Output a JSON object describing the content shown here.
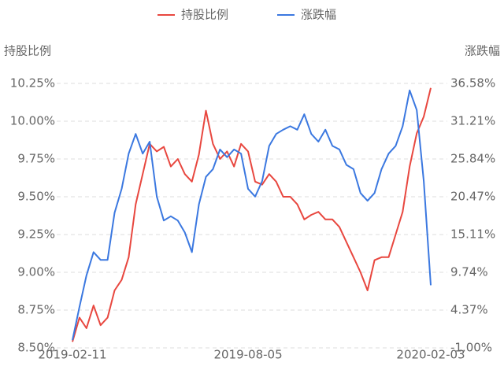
{
  "chart_data": {
    "type": "line",
    "legend_position": "top",
    "y_axis_label": "持股比例",
    "y2_axis_label": "涨跌幅",
    "categories": [
      "2019-02-11",
      null,
      null,
      null,
      null,
      null,
      null,
      null,
      null,
      null,
      null,
      null,
      null,
      null,
      null,
      null,
      null,
      null,
      null,
      null,
      null,
      null,
      null,
      null,
      null,
      "2019-08-05",
      null,
      null,
      null,
      null,
      null,
      null,
      null,
      null,
      null,
      null,
      null,
      null,
      null,
      null,
      null,
      null,
      null,
      null,
      null,
      null,
      null,
      null,
      null,
      null,
      null,
      "2020-02-03"
    ],
    "ylim": [
      8.5,
      10.25
    ],
    "yticks": [
      {
        "value": 8.5,
        "label": "8.50%"
      },
      {
        "value": 8.75,
        "label": "8.75%"
      },
      {
        "value": 9.0,
        "label": "9.00%"
      },
      {
        "value": 9.25,
        "label": "9.25%"
      },
      {
        "value": 9.5,
        "label": "9.50%"
      },
      {
        "value": 9.75,
        "label": "9.75%"
      },
      {
        "value": 10.0,
        "label": "10.00%"
      },
      {
        "value": 10.25,
        "label": "10.25%"
      }
    ],
    "y2lim": [
      -1.0,
      36.58
    ],
    "y2ticks": [
      {
        "value": -1.0,
        "label": "-1.00%"
      },
      {
        "value": 4.37,
        "label": "4.37%"
      },
      {
        "value": 9.74,
        "label": "9.74%"
      },
      {
        "value": 15.11,
        "label": "15.11%"
      },
      {
        "value": 20.47,
        "label": "20.47%"
      },
      {
        "value": 25.84,
        "label": "25.84%"
      },
      {
        "value": 31.21,
        "label": "31.21%"
      },
      {
        "value": 36.58,
        "label": "36.58%"
      }
    ],
    "grid": true,
    "series": [
      {
        "name": "持股比例",
        "color": "#e8473f",
        "values": [
          8.54,
          8.7,
          8.63,
          8.78,
          8.65,
          8.7,
          8.88,
          8.95,
          9.1,
          9.45,
          9.65,
          9.85,
          9.8,
          9.83,
          9.7,
          9.75,
          9.65,
          9.6,
          9.78,
          10.07,
          9.85,
          9.75,
          9.8,
          9.7,
          9.85,
          9.8,
          9.6,
          9.58,
          9.65,
          9.6,
          9.5,
          9.5,
          9.45,
          9.35,
          9.38,
          9.4,
          9.35,
          9.35,
          9.3,
          9.2,
          9.1,
          9.0,
          8.88,
          9.08,
          9.1,
          9.1,
          9.25,
          9.4,
          9.7,
          9.92,
          10.03,
          10.22
        ]
      },
      {
        "name": "涨跌幅",
        "color": "#3b78e0",
        "axis": "y2",
        "values": [
          0.1,
          4.8,
          9.3,
          12.6,
          11.5,
          11.5,
          18.2,
          21.6,
          26.6,
          29.4,
          26.6,
          28.3,
          20.5,
          17.1,
          17.7,
          17.1,
          15.4,
          12.6,
          19.4,
          23.3,
          24.4,
          27.2,
          26.1,
          27.2,
          26.6,
          21.6,
          20.5,
          22.7,
          27.7,
          29.4,
          30.0,
          30.5,
          30.0,
          32.2,
          29.4,
          28.3,
          30.0,
          27.7,
          27.2,
          25.0,
          24.4,
          21.0,
          19.9,
          21.0,
          24.4,
          26.6,
          27.7,
          30.5,
          35.6,
          32.8,
          22.7,
          7.9
        ]
      }
    ]
  }
}
